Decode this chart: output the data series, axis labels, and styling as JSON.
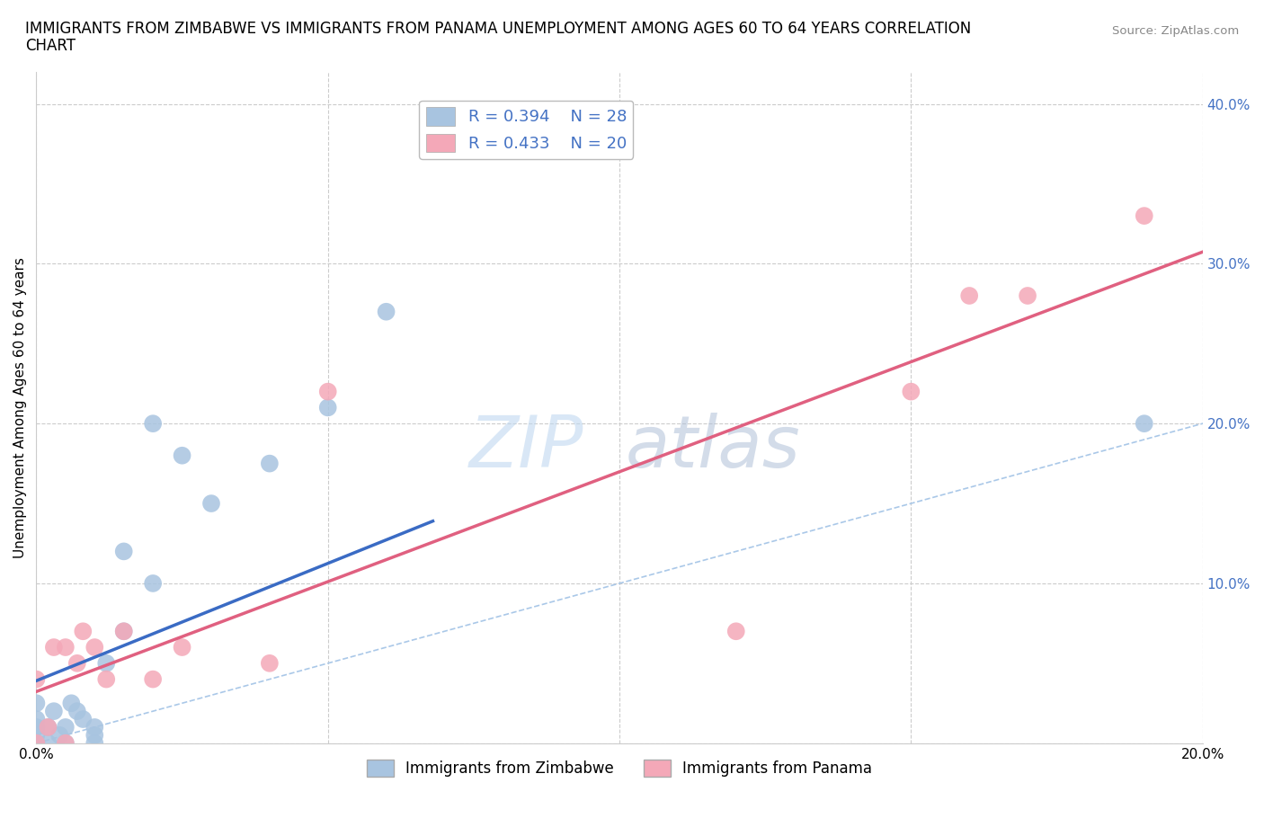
{
  "title_line1": "IMMIGRANTS FROM ZIMBABWE VS IMMIGRANTS FROM PANAMA UNEMPLOYMENT AMONG AGES 60 TO 64 YEARS CORRELATION",
  "title_line2": "CHART",
  "source": "Source: ZipAtlas.com",
  "ylabel": "Unemployment Among Ages 60 to 64 years",
  "xlim": [
    0.0,
    0.2
  ],
  "ylim": [
    0.0,
    0.42
  ],
  "xticks": [
    0.0,
    0.05,
    0.1,
    0.15,
    0.2
  ],
  "yticks": [
    0.0,
    0.1,
    0.2,
    0.3,
    0.4
  ],
  "background_color": "#ffffff",
  "grid_color": "#cccccc",
  "zimbabwe_scatter_color": "#a8c4e0",
  "panama_scatter_color": "#f4a8b8",
  "zimbabwe_line_color": "#3a6bc4",
  "panama_line_color": "#e06080",
  "diagonal_color": "#aac8e8",
  "right_tick_color": "#4472c4",
  "R_zimbabwe": 0.394,
  "N_zimbabwe": 28,
  "R_panama": 0.433,
  "N_panama": 20,
  "zimbabwe_x": [
    0.0,
    0.0,
    0.0,
    0.0,
    0.0,
    0.002,
    0.002,
    0.003,
    0.004,
    0.005,
    0.005,
    0.006,
    0.007,
    0.008,
    0.01,
    0.01,
    0.01,
    0.012,
    0.015,
    0.015,
    0.02,
    0.02,
    0.025,
    0.03,
    0.04,
    0.05,
    0.06,
    0.19
  ],
  "zimbabwe_y": [
    0.0,
    0.005,
    0.01,
    0.015,
    0.025,
    0.0,
    0.01,
    0.02,
    0.005,
    0.0,
    0.01,
    0.025,
    0.02,
    0.015,
    0.0,
    0.005,
    0.01,
    0.05,
    0.07,
    0.12,
    0.1,
    0.2,
    0.18,
    0.15,
    0.175,
    0.21,
    0.27,
    0.2
  ],
  "panama_x": [
    0.0,
    0.0,
    0.002,
    0.003,
    0.005,
    0.005,
    0.007,
    0.008,
    0.01,
    0.012,
    0.015,
    0.02,
    0.025,
    0.04,
    0.05,
    0.12,
    0.15,
    0.16,
    0.17,
    0.19
  ],
  "panama_y": [
    0.0,
    0.04,
    0.01,
    0.06,
    0.0,
    0.06,
    0.05,
    0.07,
    0.06,
    0.04,
    0.07,
    0.04,
    0.06,
    0.05,
    0.22,
    0.07,
    0.22,
    0.28,
    0.28,
    0.33
  ],
  "legend_fontsize": 13,
  "title_fontsize": 12,
  "axis_fontsize": 11,
  "watermark_zip_color": "#c0d8f0",
  "watermark_atlas_color": "#b0c0d8"
}
